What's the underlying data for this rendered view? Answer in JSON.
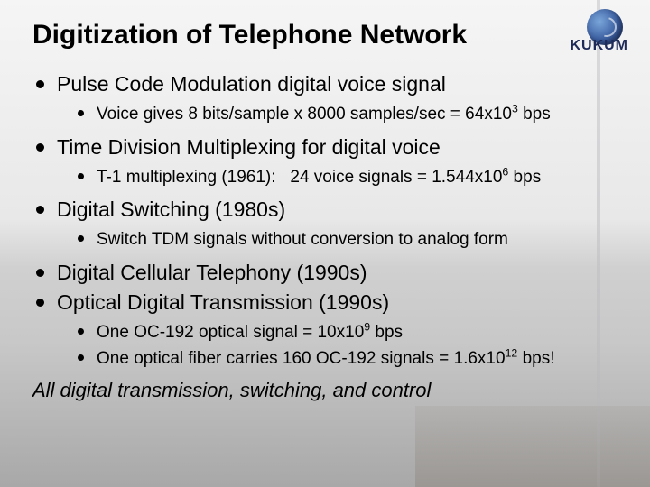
{
  "logo_text": "KUKUM",
  "title": "Digitization of Telephone Network",
  "items": [
    {
      "text": "Pulse Code Modulation digital voice signal",
      "sub": [
        {
          "html": "Voice gives 8 bits/sample x 8000 samples/sec = 64x10<sup>3</sup> bps"
        }
      ]
    },
    {
      "text": "Time Division Multiplexing for digital voice",
      "sub": [
        {
          "html": "T-1 multiplexing (1961):&nbsp;&nbsp;&nbsp;24 voice signals = 1.544x10<sup>6</sup> bps"
        }
      ]
    },
    {
      "text": "Digital Switching (1980s)",
      "sub": [
        {
          "html": "Switch TDM signals without conversion to analog form"
        }
      ]
    },
    {
      "text": "Digital Cellular Telephony (1990s)",
      "sub": []
    },
    {
      "text": "Optical Digital Transmission (1990s)",
      "sub": [
        {
          "html": "One OC-192 optical signal = 10x10<sup>9</sup> bps"
        },
        {
          "html": "One optical fiber carries 160 OC-192 signals = 1.6x10<sup>12</sup> bps!"
        }
      ]
    }
  ],
  "footer": "All digital transmission, switching, and control",
  "colors": {
    "text": "#000000",
    "bullet": "#000000",
    "logo_dark": "#1e2a5a"
  },
  "fontsizes": {
    "title": 30,
    "level1": 23,
    "level2": 19,
    "footer": 22
  }
}
